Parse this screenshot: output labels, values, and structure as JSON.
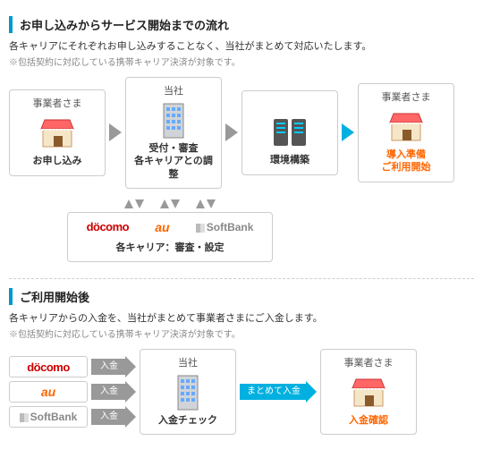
{
  "section1": {
    "title": "お申し込みからサービス開始までの流れ",
    "desc": "各キャリアにそれぞれお申し込みすることなく、当社がまとめて対応いたします。",
    "note": "※包括契約に対応している携帯キャリア決済が対象です。",
    "boxes": [
      {
        "title": "事業者さま",
        "label": "お申し込み",
        "kind": "shop",
        "orange": false
      },
      {
        "title": "当社",
        "label": "受付・審査\n各キャリアとの調整",
        "kind": "building",
        "orange": false
      },
      {
        "title": "",
        "label": "環境構築",
        "kind": "servers",
        "orange": false
      },
      {
        "title": "事業者さま",
        "label": "導入準備\nご利用開始",
        "kind": "shop",
        "orange": true
      }
    ],
    "arrow_colors": [
      "gray",
      "gray",
      "cyan"
    ],
    "carrier_box_label": "各キャリア：審査・設定",
    "carriers": [
      "docomo",
      "au",
      "SoftBank"
    ]
  },
  "section2": {
    "title": "ご利用開始後",
    "desc": "各キャリアからの入金を、当社がまとめて事業者さまにご入金します。",
    "note": "※包括契約に対応している携帯キャリア決済が対象です。",
    "carriers": [
      "docomo",
      "au",
      "SoftBank"
    ],
    "deposit_label": "入金",
    "company": {
      "title": "当社",
      "label": "入金チェック",
      "kind": "building"
    },
    "cyan_arrow_label": "まとめて入金",
    "merchant": {
      "title": "事業者さま",
      "label": "入金確認",
      "kind": "shop",
      "orange": true
    }
  }
}
